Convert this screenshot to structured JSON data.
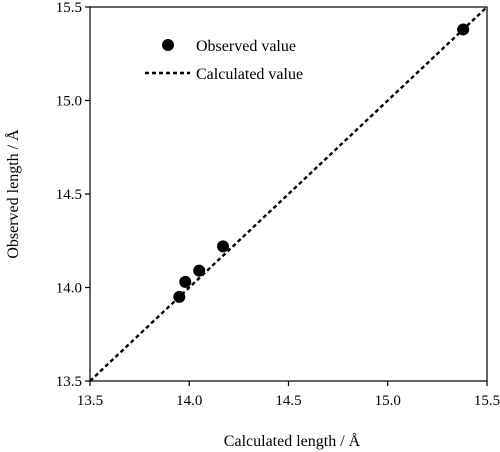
{
  "chart_data": {
    "type": "scatter",
    "xlabel": "Calculated length  /  Å",
    "ylabel": "Observed length  /  Å",
    "xlim": [
      13.5,
      15.5
    ],
    "ylim": [
      13.5,
      15.5
    ],
    "xticks": [
      "13.5",
      "14.0",
      "14.5",
      "15.0",
      "15.5"
    ],
    "yticks": [
      "13.5",
      "14.0",
      "14.5",
      "15.0",
      "15.5"
    ],
    "grid": false,
    "legend_position": "top-left",
    "series": [
      {
        "name": "Observed value",
        "kind": "points",
        "marker": "filled-circle",
        "color": "#000000",
        "points": [
          {
            "x": 13.95,
            "y": 13.95
          },
          {
            "x": 13.98,
            "y": 14.03
          },
          {
            "x": 14.05,
            "y": 14.09
          },
          {
            "x": 14.17,
            "y": 14.22
          },
          {
            "x": 15.38,
            "y": 15.38
          }
        ]
      },
      {
        "name": "Calculated value",
        "kind": "line",
        "style": "dashed",
        "color": "#000000",
        "points": [
          {
            "x": 13.5,
            "y": 13.5
          },
          {
            "x": 15.5,
            "y": 15.5
          }
        ]
      }
    ]
  }
}
